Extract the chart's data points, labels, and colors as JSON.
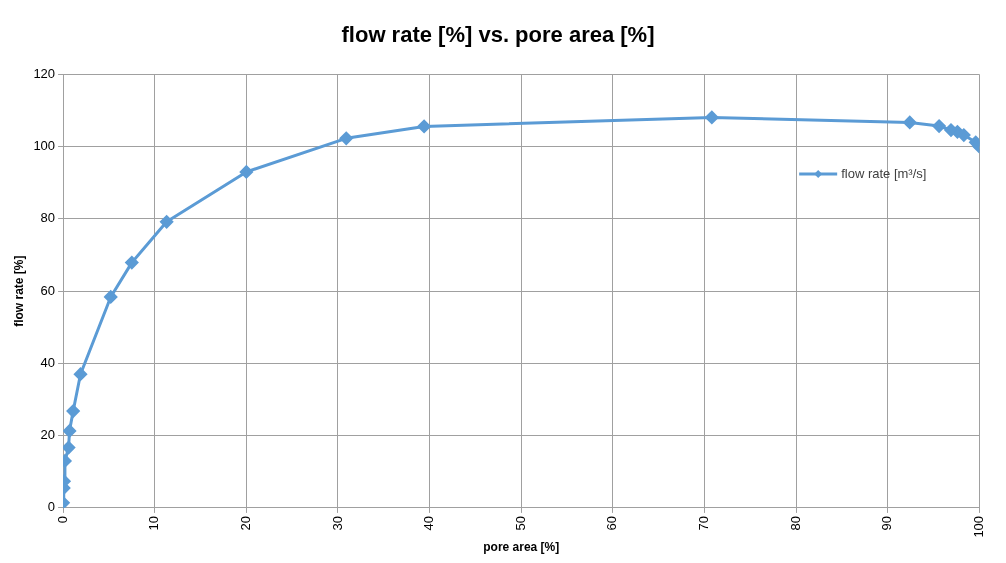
{
  "chart_data": {
    "type": "line",
    "title": "flow rate [%] vs. pore area [%]",
    "xlabel": "pore area [%]",
    "ylabel": "flow rate [%]",
    "series": [
      {
        "name": "flow rate [m³/s]",
        "color": "#5b9bd5",
        "x": [
          0,
          0.07,
          0.1,
          0.2,
          0.6,
          0.7,
          1.1,
          1.9,
          5.2,
          7.5,
          11.3,
          20,
          30.9,
          39.4,
          70.8,
          92.4,
          95.6,
          96.9,
          97.6,
          98.3,
          99.6,
          100
        ],
        "values": [
          1.4,
          5.5,
          7.4,
          13,
          16.7,
          21.3,
          26.8,
          37,
          58.4,
          67.9,
          79.2,
          93,
          102.3,
          105.6,
          108.1,
          106.7,
          105.7,
          104.6,
          104.1,
          103.2,
          101.2,
          100
        ]
      }
    ],
    "xlim": [
      0,
      100
    ],
    "xticks": [
      0,
      10,
      20,
      30,
      40,
      50,
      60,
      70,
      80,
      90,
      100
    ],
    "ylim": [
      0,
      120
    ],
    "yticks": [
      0,
      20,
      40,
      60,
      80,
      100,
      120
    ],
    "grid": true,
    "legend": "right",
    "marker": "diamond",
    "line_style": "solid"
  }
}
